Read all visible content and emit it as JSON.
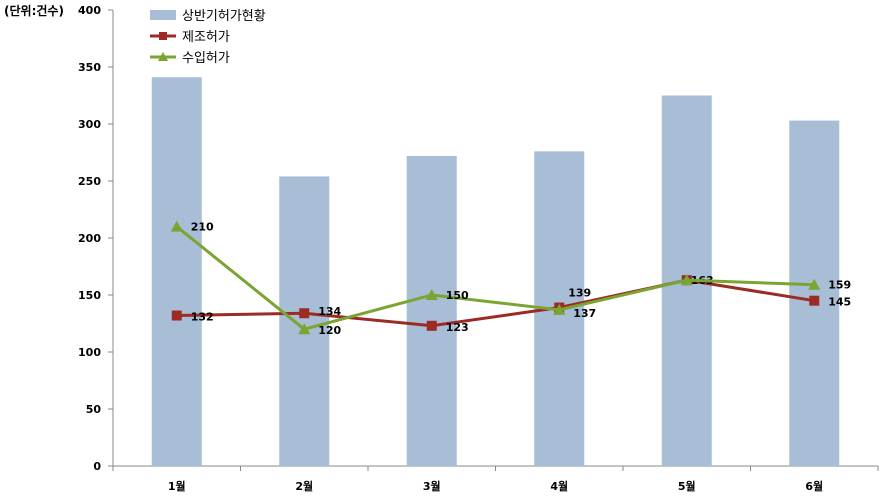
{
  "unit_label": "(단위:건수)",
  "chart_data": {
    "type": "bar",
    "categories": [
      "1월",
      "2월",
      "3월",
      "4월",
      "5월",
      "6월"
    ],
    "ylim": [
      0,
      400
    ],
    "ytick_step": 50,
    "yticks": [
      "0",
      "50",
      "100",
      "150",
      "200",
      "250",
      "300",
      "350",
      "400"
    ],
    "legend_position": "top-left",
    "grid": false,
    "series": [
      {
        "name": "상반기허가현황",
        "kind": "bar",
        "color": "#a8bdd6",
        "values": [
          341,
          254,
          272,
          276,
          325,
          303
        ]
      },
      {
        "name": "제조허가",
        "kind": "line",
        "marker": "square",
        "color": "#9c2a25",
        "values": [
          132,
          134,
          123,
          139,
          163,
          145
        ],
        "labels": [
          "132",
          "134",
          "123",
          "139",
          "163",
          "145"
        ]
      },
      {
        "name": "수입허가",
        "kind": "line",
        "marker": "triangle",
        "color": "#7aa531",
        "values": [
          210,
          120,
          150,
          137,
          163,
          159
        ],
        "labels": [
          "210",
          "120",
          "150",
          "137",
          "",
          "159"
        ]
      }
    ]
  }
}
